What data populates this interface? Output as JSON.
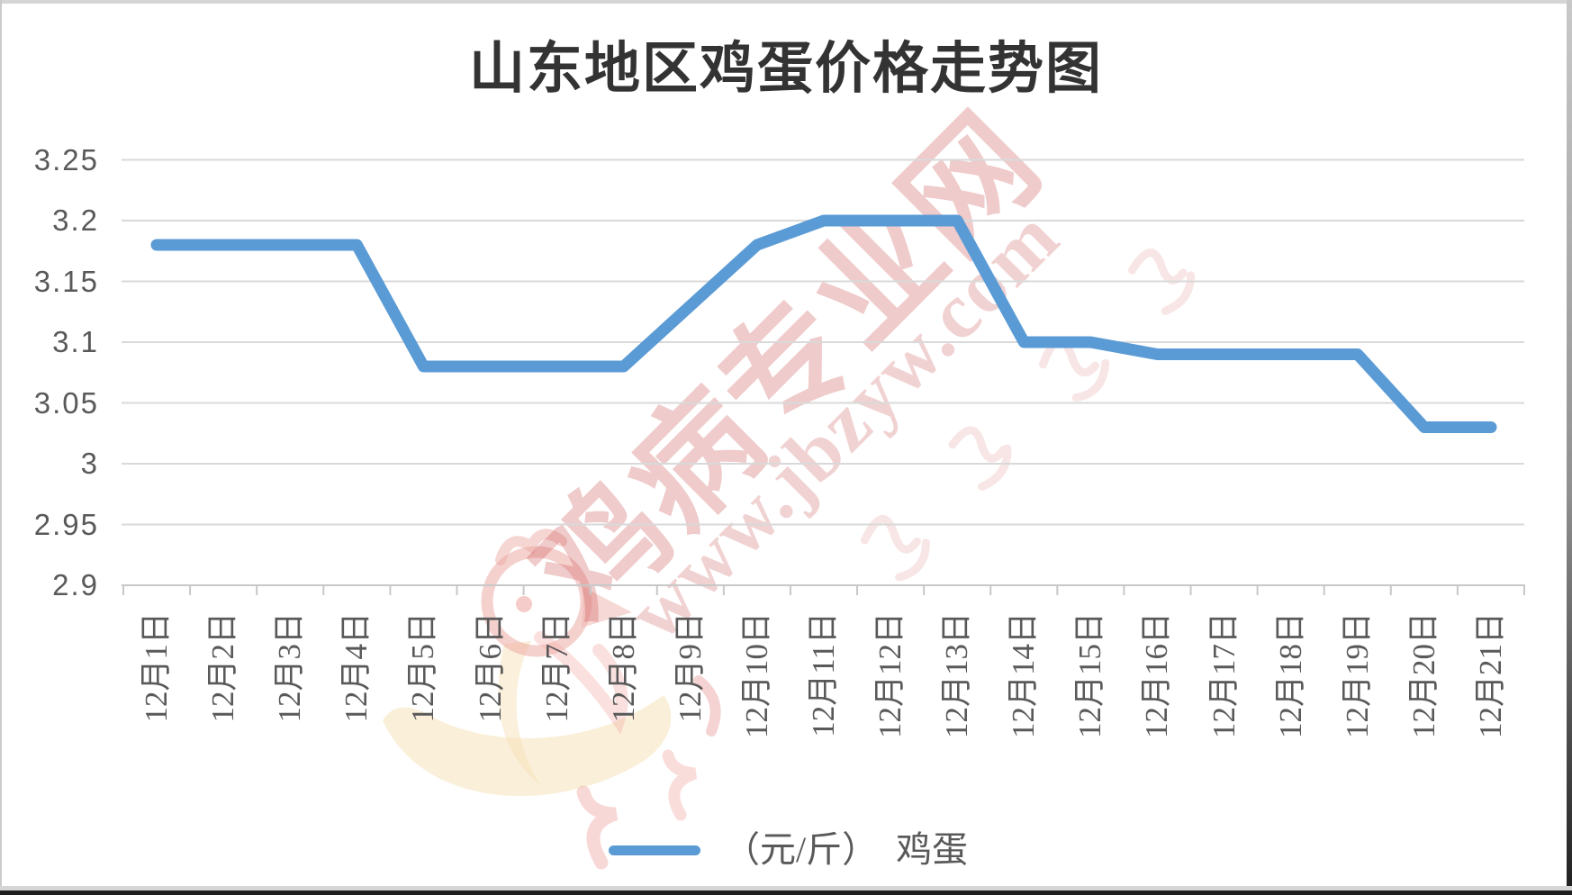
{
  "chart_data": {
    "type": "line",
    "title": "山东地区鸡蛋价格走势图",
    "categories": [
      "12月1日",
      "12月2日",
      "12月3日",
      "12月4日",
      "12月5日",
      "12月6日",
      "12月7日",
      "12月8日",
      "12月9日",
      "12月10日",
      "12月11日",
      "12月12日",
      "12月13日",
      "12月14日",
      "12月15日",
      "12月16日",
      "12月17日",
      "12月18日",
      "12月19日",
      "12月20日",
      "12月21日"
    ],
    "series": [
      {
        "name": "（元/斤）　鸡蛋",
        "color": "#5B9BD5",
        "values": [
          3.18,
          3.18,
          3.18,
          3.18,
          3.08,
          3.08,
          3.08,
          3.08,
          3.13,
          3.18,
          3.2,
          3.2,
          3.2,
          3.1,
          3.1,
          3.09,
          3.09,
          3.09,
          3.09,
          3.03,
          3.03
        ]
      }
    ],
    "xlabel": "",
    "ylabel": "",
    "ylim": [
      2.9,
      3.25
    ],
    "ytick_step": 0.05,
    "yticks_top_to_bottom": [
      "3.25",
      "3.2",
      "3.15",
      "3.1",
      "3.05",
      "3",
      "2.95",
      "2.9"
    ],
    "grid": "horizontal",
    "legend_position": "bottom",
    "colors": {
      "line": "#5B9BD5",
      "gridline": "#D9D9D9",
      "axis": "#C8C8C8",
      "tick_label": "#595959",
      "title": "#333333"
    }
  },
  "watermark": {
    "brand": "鸡病专业网",
    "url": "www.jbzyw.com",
    "color": "#CC5555"
  }
}
